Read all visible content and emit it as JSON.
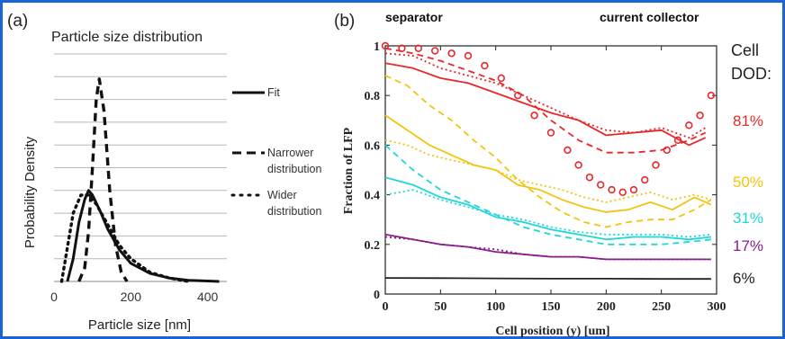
{
  "panel_a": {
    "label": "(a)",
    "title": "Particle size distribution",
    "xlabel": "Particle size [nm]",
    "ylabel": "Probability Density",
    "x_ticks": [
      "0",
      "200",
      "400"
    ],
    "legend": [
      {
        "label": "Fit",
        "style": "solid"
      },
      {
        "label": "Narrower distribution",
        "lines": [
          "Narrower",
          "distribution"
        ],
        "style": "dashed"
      },
      {
        "label": "Wider distribution",
        "lines": [
          "Wider",
          "distribution"
        ],
        "style": "dotted"
      }
    ]
  },
  "panel_b": {
    "label": "(b)",
    "top_left_note": "separator",
    "top_right_note": "current collector",
    "xlabel": "Cell position (y) [um]",
    "ylabel": "Fraction of LFP",
    "x_ticks": [
      "0",
      "50",
      "100",
      "150",
      "200",
      "250",
      "300"
    ],
    "y_ticks": [
      "0",
      "0.2",
      "0.4",
      "0.6",
      "0.8",
      "1"
    ],
    "dod_title_lines": [
      "Cell",
      "DOD:"
    ],
    "dod_labels": [
      {
        "text": "81%",
        "color": "#e8272a"
      },
      {
        "text": "50%",
        "color": "#f2c40f"
      },
      {
        "text": "31%",
        "color": "#1fd6d8"
      },
      {
        "text": "17%",
        "color": "#8a1c8c"
      },
      {
        "text": "6%",
        "color": "#222222"
      }
    ]
  },
  "chart_data": [
    {
      "type": "line",
      "title": "Particle size distribution",
      "xlabel": "Particle size [nm]",
      "ylabel": "Probability Density",
      "xlim": [
        0,
        450
      ],
      "ylim": [
        0,
        1
      ],
      "grid": true,
      "legend": "right",
      "series": [
        {
          "name": "Fit",
          "style": "solid",
          "x": [
            35,
            50,
            65,
            80,
            90,
            100,
            120,
            140,
            170,
            200,
            250,
            300,
            350,
            400,
            430
          ],
          "y": [
            0.0,
            0.1,
            0.26,
            0.36,
            0.4,
            0.38,
            0.31,
            0.23,
            0.14,
            0.08,
            0.035,
            0.015,
            0.005,
            0.002,
            0.0
          ]
        },
        {
          "name": "Narrower distribution",
          "style": "dashed",
          "x": [
            65,
            80,
            90,
            100,
            110,
            118,
            130,
            145,
            160,
            175,
            190
          ],
          "y": [
            0.0,
            0.06,
            0.22,
            0.5,
            0.8,
            0.89,
            0.75,
            0.4,
            0.16,
            0.04,
            0.0
          ]
        },
        {
          "name": "Wider distribution",
          "style": "dotted",
          "x": [
            20,
            35,
            50,
            70,
            90,
            110,
            140,
            170,
            200,
            250,
            300,
            350
          ],
          "y": [
            0.0,
            0.15,
            0.3,
            0.38,
            0.38,
            0.34,
            0.25,
            0.16,
            0.1,
            0.04,
            0.015,
            0.0
          ]
        }
      ]
    },
    {
      "type": "line",
      "xlabel": "Cell position (y) [um]",
      "ylabel": "Fraction of LFP",
      "xlim": [
        0,
        300
      ],
      "ylim": [
        0,
        1
      ],
      "grid": false,
      "series": [
        {
          "name": "81%",
          "style": "solid",
          "color": "#e8272a",
          "x": [
            0,
            25,
            50,
            75,
            100,
            125,
            150,
            175,
            200,
            225,
            250,
            275,
            290
          ],
          "y": [
            0.93,
            0.91,
            0.87,
            0.85,
            0.81,
            0.77,
            0.73,
            0.7,
            0.64,
            0.65,
            0.66,
            0.6,
            0.63
          ]
        },
        {
          "name": "81%",
          "style": "dashed",
          "color": "#e8272a",
          "x": [
            0,
            25,
            50,
            75,
            100,
            125,
            150,
            175,
            200,
            225,
            250,
            275,
            290
          ],
          "y": [
            0.99,
            0.97,
            0.94,
            0.9,
            0.86,
            0.8,
            0.7,
            0.62,
            0.57,
            0.57,
            0.58,
            0.62,
            0.65
          ]
        },
        {
          "name": "81%",
          "style": "dotted",
          "color": "#e8272a",
          "x": [
            0,
            25,
            50,
            75,
            100,
            125,
            150,
            175,
            200,
            225,
            250,
            275,
            290
          ],
          "y": [
            0.97,
            0.96,
            0.91,
            0.88,
            0.85,
            0.8,
            0.75,
            0.7,
            0.66,
            0.65,
            0.67,
            0.63,
            0.67
          ]
        },
        {
          "name": "81%",
          "style": "markers",
          "color": "#e8272a",
          "x": [
            0,
            15,
            30,
            45,
            60,
            75,
            90,
            105,
            120,
            135,
            150,
            165,
            175,
            185,
            195,
            205,
            215,
            225,
            235,
            245,
            255,
            265,
            275,
            285,
            295
          ],
          "y": [
            1.0,
            0.99,
            0.99,
            0.98,
            0.97,
            0.96,
            0.92,
            0.87,
            0.8,
            0.72,
            0.65,
            0.58,
            0.52,
            0.47,
            0.44,
            0.42,
            0.41,
            0.42,
            0.46,
            0.52,
            0.58,
            0.62,
            0.68,
            0.72,
            0.8
          ]
        },
        {
          "name": "50%",
          "style": "solid",
          "color": "#f2c40f",
          "x": [
            0,
            20,
            40,
            60,
            80,
            100,
            120,
            140,
            160,
            180,
            200,
            220,
            240,
            260,
            280,
            295
          ],
          "y": [
            0.72,
            0.66,
            0.6,
            0.56,
            0.52,
            0.5,
            0.44,
            0.42,
            0.38,
            0.35,
            0.33,
            0.34,
            0.37,
            0.34,
            0.39,
            0.36
          ]
        },
        {
          "name": "50%",
          "style": "dashed",
          "color": "#f2c40f",
          "x": [
            0,
            20,
            40,
            60,
            80,
            100,
            120,
            140,
            160,
            180,
            200,
            220,
            240,
            260,
            280,
            295
          ],
          "y": [
            0.88,
            0.84,
            0.76,
            0.7,
            0.62,
            0.55,
            0.46,
            0.39,
            0.33,
            0.29,
            0.27,
            0.29,
            0.3,
            0.3,
            0.34,
            0.38
          ]
        },
        {
          "name": "50%",
          "style": "dotted",
          "color": "#f2c40f",
          "x": [
            0,
            20,
            40,
            60,
            80,
            100,
            120,
            140,
            160,
            180,
            200,
            220,
            240,
            260,
            280,
            295
          ],
          "y": [
            0.62,
            0.6,
            0.56,
            0.54,
            0.52,
            0.5,
            0.46,
            0.44,
            0.42,
            0.39,
            0.37,
            0.39,
            0.41,
            0.38,
            0.4,
            0.38
          ]
        },
        {
          "name": "31%",
          "style": "solid",
          "color": "#1fd6d8",
          "x": [
            0,
            25,
            50,
            75,
            100,
            125,
            150,
            175,
            200,
            225,
            250,
            275,
            295
          ],
          "y": [
            0.47,
            0.44,
            0.39,
            0.36,
            0.31,
            0.29,
            0.26,
            0.24,
            0.22,
            0.23,
            0.23,
            0.22,
            0.23
          ]
        },
        {
          "name": "31%",
          "style": "dashed",
          "color": "#1fd6d8",
          "x": [
            0,
            25,
            50,
            75,
            100,
            125,
            150,
            175,
            200,
            225,
            250,
            275,
            295
          ],
          "y": [
            0.6,
            0.5,
            0.42,
            0.37,
            0.32,
            0.27,
            0.24,
            0.22,
            0.2,
            0.2,
            0.2,
            0.21,
            0.22
          ]
        },
        {
          "name": "31%",
          "style": "dotted",
          "color": "#1fd6d8",
          "x": [
            0,
            25,
            50,
            75,
            100,
            125,
            150,
            175,
            200,
            225,
            250,
            275,
            295
          ],
          "y": [
            0.4,
            0.42,
            0.38,
            0.35,
            0.32,
            0.3,
            0.27,
            0.25,
            0.24,
            0.24,
            0.24,
            0.23,
            0.24
          ]
        },
        {
          "name": "17%",
          "style": "solid",
          "color": "#8a1c8c",
          "x": [
            0,
            25,
            50,
            75,
            100,
            125,
            150,
            175,
            200,
            225,
            250,
            275,
            295
          ],
          "y": [
            0.24,
            0.22,
            0.2,
            0.19,
            0.17,
            0.16,
            0.15,
            0.15,
            0.14,
            0.14,
            0.14,
            0.14,
            0.14
          ]
        },
        {
          "name": "17%",
          "style": "dotted",
          "color": "#8a1c8c",
          "x": [
            0,
            25,
            50,
            75,
            100,
            125,
            150,
            175,
            200,
            225,
            250,
            275,
            295
          ],
          "y": [
            0.23,
            0.22,
            0.2,
            0.19,
            0.18,
            0.16,
            0.15,
            0.15,
            0.14,
            0.14,
            0.14,
            0.14,
            0.14
          ]
        },
        {
          "name": "6%",
          "style": "solid",
          "color": "#222222",
          "x": [
            0,
            50,
            100,
            150,
            200,
            250,
            295
          ],
          "y": [
            0.065,
            0.064,
            0.063,
            0.062,
            0.062,
            0.061,
            0.061
          ]
        }
      ]
    }
  ]
}
